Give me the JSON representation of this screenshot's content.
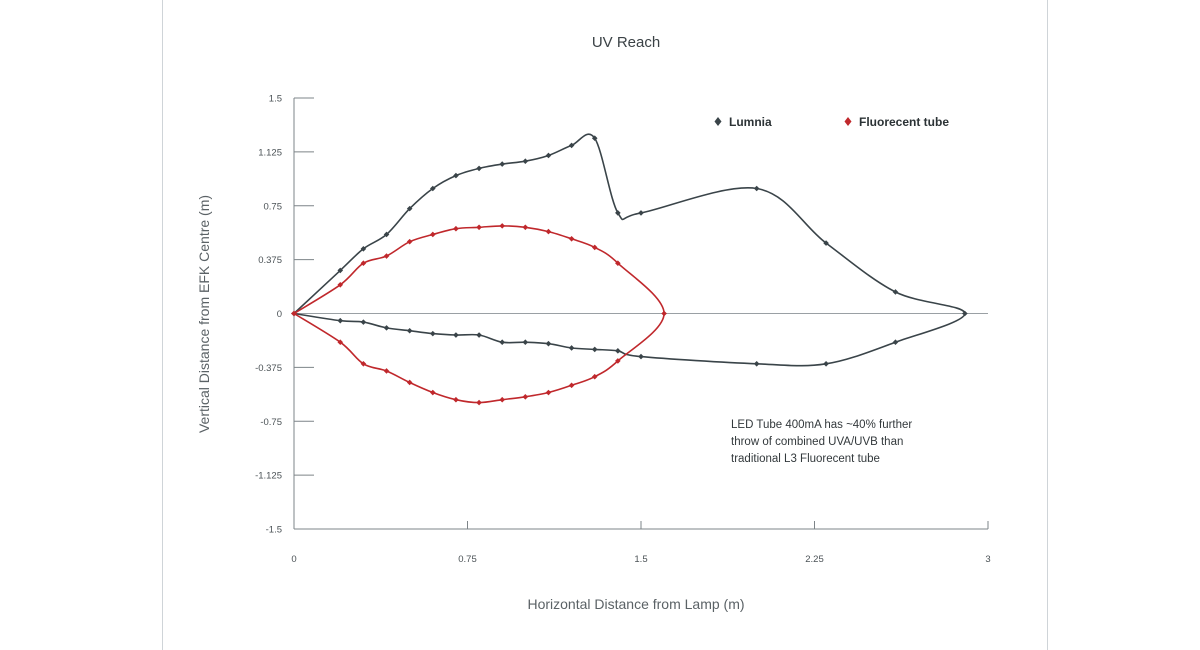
{
  "chart_data": {
    "type": "line",
    "title": "UV Reach",
    "xlabel": "Horizontal Distance from Lamp (m)",
    "ylabel": "Vertical Distance from EFK Centre (m)",
    "xlim": [
      0,
      3
    ],
    "ylim": [
      -1.5,
      1.5
    ],
    "xticks": [
      0,
      0.75,
      1.5,
      2.25,
      3
    ],
    "xtick_labels": [
      "0",
      "0.75",
      "1.5",
      "2.25",
      "3"
    ],
    "yticks": [
      1.5,
      1.125,
      0.75,
      0.375,
      0,
      -0.375,
      -0.75,
      -1.125,
      -1.5
    ],
    "ytick_labels": [
      "1.5",
      "1.125",
      "0.75",
      "0.375",
      "0",
      "-0.375",
      "-0.75",
      "-1.125",
      "-1.5"
    ],
    "legend_position": "top-right",
    "annotation_lines": [
      "LED Tube 400mA has ~40% further",
      "throw of combined UVA/UVB than",
      "traditional L3 Fluorecent tube"
    ],
    "series": [
      {
        "name": "Lumnia",
        "color": "#3a4449",
        "marker": "diamond",
        "points": [
          [
            0,
            0
          ],
          [
            0.2,
            0.3
          ],
          [
            0.3,
            0.45
          ],
          [
            0.4,
            0.55
          ],
          [
            0.5,
            0.73
          ],
          [
            0.6,
            0.87
          ],
          [
            0.7,
            0.96
          ],
          [
            0.8,
            1.01
          ],
          [
            0.9,
            1.04
          ],
          [
            1.0,
            1.06
          ],
          [
            1.1,
            1.1
          ],
          [
            1.2,
            1.17
          ],
          [
            1.3,
            1.22
          ],
          [
            1.4,
            0.7
          ],
          [
            1.5,
            0.7
          ],
          [
            2.0,
            0.87
          ],
          [
            2.3,
            0.49
          ],
          [
            2.6,
            0.15
          ],
          [
            2.9,
            0
          ],
          [
            2.6,
            -0.2
          ],
          [
            2.3,
            -0.35
          ],
          [
            2.0,
            -0.35
          ],
          [
            1.5,
            -0.3
          ],
          [
            1.4,
            -0.26
          ],
          [
            1.3,
            -0.25
          ],
          [
            1.2,
            -0.24
          ],
          [
            1.1,
            -0.21
          ],
          [
            1.0,
            -0.2
          ],
          [
            0.9,
            -0.2
          ],
          [
            0.8,
            -0.15
          ],
          [
            0.7,
            -0.15
          ],
          [
            0.6,
            -0.14
          ],
          [
            0.5,
            -0.12
          ],
          [
            0.4,
            -0.1
          ],
          [
            0.3,
            -0.06
          ],
          [
            0.2,
            -0.05
          ],
          [
            0,
            0
          ]
        ]
      },
      {
        "name": "Fluorecent tube",
        "color": "#c0282c",
        "marker": "diamond",
        "points": [
          [
            0,
            0
          ],
          [
            0.2,
            0.2
          ],
          [
            0.3,
            0.35
          ],
          [
            0.4,
            0.4
          ],
          [
            0.5,
            0.5
          ],
          [
            0.6,
            0.55
          ],
          [
            0.7,
            0.59
          ],
          [
            0.8,
            0.6
          ],
          [
            0.9,
            0.61
          ],
          [
            1.0,
            0.6
          ],
          [
            1.1,
            0.57
          ],
          [
            1.2,
            0.52
          ],
          [
            1.3,
            0.46
          ],
          [
            1.4,
            0.35
          ],
          [
            1.6,
            0
          ],
          [
            1.4,
            -0.33
          ],
          [
            1.3,
            -0.44
          ],
          [
            1.2,
            -0.5
          ],
          [
            1.1,
            -0.55
          ],
          [
            1.0,
            -0.58
          ],
          [
            0.9,
            -0.6
          ],
          [
            0.8,
            -0.62
          ],
          [
            0.7,
            -0.6
          ],
          [
            0.6,
            -0.55
          ],
          [
            0.5,
            -0.48
          ],
          [
            0.4,
            -0.4
          ],
          [
            0.3,
            -0.35
          ],
          [
            0.2,
            -0.2
          ],
          [
            0,
            0
          ]
        ]
      }
    ]
  }
}
